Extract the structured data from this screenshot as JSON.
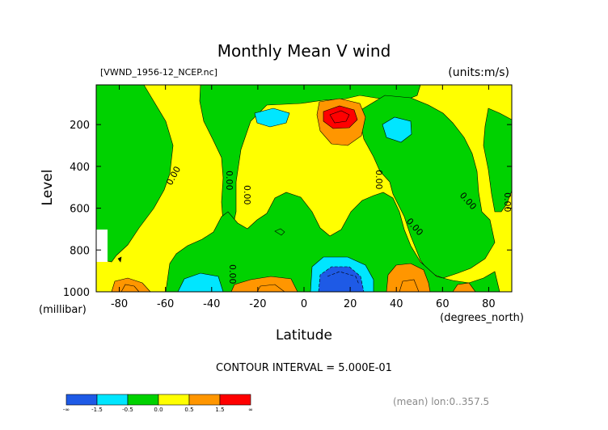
{
  "chart_data": {
    "type": "contour",
    "title": "Monthly Mean V wind",
    "subtitle_left": "[VWND_1956-12_NCEP.nc]",
    "subtitle_right": "(units:m/s)",
    "xlabel": "Latitude",
    "xunit": "(degrees_north)",
    "ylabel": "Level",
    "yunit": "(millibar)",
    "xlim": [
      -90,
      90
    ],
    "ylim": [
      1000,
      10
    ],
    "xticks": [
      -80,
      -60,
      -40,
      -20,
      0,
      20,
      40,
      60,
      80
    ],
    "yticks": [
      200,
      400,
      600,
      800,
      1000
    ],
    "contour_interval_text": "CONTOUR INTERVAL = 5.000E-01",
    "footnote": "(mean) lon:0..357.5",
    "contour_labels": [
      "0.00",
      "0.00",
      "0.00",
      "0.00",
      "0.00",
      "0.00",
      "0.00",
      "0.00"
    ],
    "colorbar": {
      "colors": [
        "#1e5ae6",
        "#00e6ff",
        "#00d200",
        "#ffff00",
        "#ff9600",
        "#ff0000"
      ],
      "tick_labels": [
        "-∞",
        "-1.5",
        "-0.5",
        "0.0",
        "0.5",
        "1.5",
        "∞"
      ]
    },
    "regions": [
      {
        "name": "background-band",
        "value_range": "0.0 to 0.5",
        "color": "#ffff00"
      },
      {
        "name": "sh-polar-band",
        "value_range": "-0.5 to 0.0",
        "color": "#00d200"
      },
      {
        "name": "upper-tropics-band",
        "value_range": "-0.5 to 0.0",
        "color": "#00d200"
      },
      {
        "name": "nh-mid-band",
        "value_range": "-0.5 to 0.0",
        "color": "#00d200"
      },
      {
        "name": "lower-mid-band",
        "value_range": "-0.5 to 0.0",
        "color": "#00d200"
      },
      {
        "name": "nh-polar-band",
        "value_range": "-0.5 to 0.0",
        "color": "#00d200"
      },
      {
        "name": "upper-max-ring",
        "value_range": "0.5 to 1.5",
        "color": "#ff9600"
      },
      {
        "name": "upper-max-core",
        "value_range": "> 1.5",
        "color": "#ff0000"
      },
      {
        "name": "nh-surface-max",
        "value_range": "0.5 to 1.5",
        "color": "#ff9600"
      },
      {
        "name": "sh-surface-max",
        "value_range": "0.5 to 1.5",
        "color": "#ff9600"
      },
      {
        "name": "polar-surface-max",
        "value_range": "0.5 to 1.5",
        "color": "#ff9600"
      },
      {
        "name": "upper-sh-min",
        "value_range": "-1.5 to -0.5",
        "color": "#00e6ff"
      },
      {
        "name": "upper-nh-min",
        "value_range": "-1.5 to -0.5",
        "color": "#00e6ff"
      },
      {
        "name": "surface-sh-min",
        "value_range": "-1.5 to -0.5",
        "color": "#00e6ff"
      },
      {
        "name": "surface-nh-min-ring",
        "value_range": "-1.5 to -0.5",
        "color": "#00e6ff"
      },
      {
        "name": "surface-nh-min-core",
        "value_range": "< -1.5",
        "color": "#1e5ae6"
      }
    ]
  }
}
